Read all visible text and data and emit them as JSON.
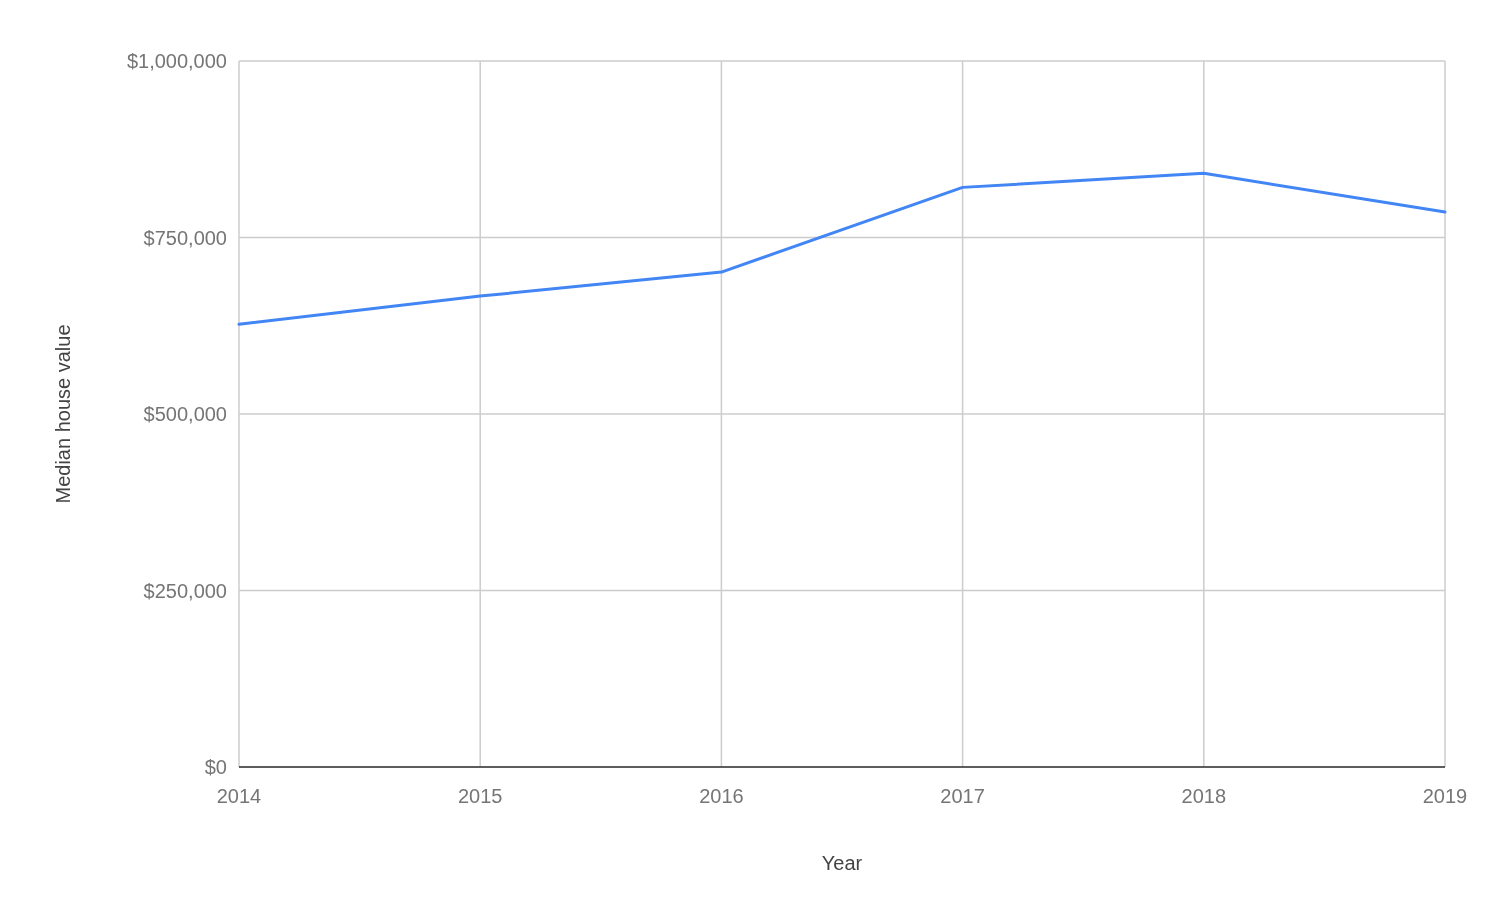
{
  "chart_data": {
    "type": "line",
    "xlabel": "Year",
    "ylabel": "Median house value",
    "x": [
      2014,
      2015,
      2016,
      2017,
      2018,
      2019
    ],
    "series": [
      {
        "color": "#4285f4",
        "values": [
          627000,
          667000,
          701000,
          821000,
          841000,
          786000
        ]
      }
    ],
    "xlim": [
      2014,
      2019
    ],
    "xticks": [
      2014,
      2015,
      2016,
      2017,
      2018,
      2019
    ],
    "ylim": [
      0,
      1000000
    ],
    "yticks": [
      {
        "value": 0,
        "label": "$0"
      },
      {
        "value": 250000,
        "label": "$250,000"
      },
      {
        "value": 500000,
        "label": "$500,000"
      },
      {
        "value": 750000,
        "label": "$750,000"
      },
      {
        "value": 1000000,
        "label": "$1,000,000"
      }
    ],
    "grid": true
  }
}
